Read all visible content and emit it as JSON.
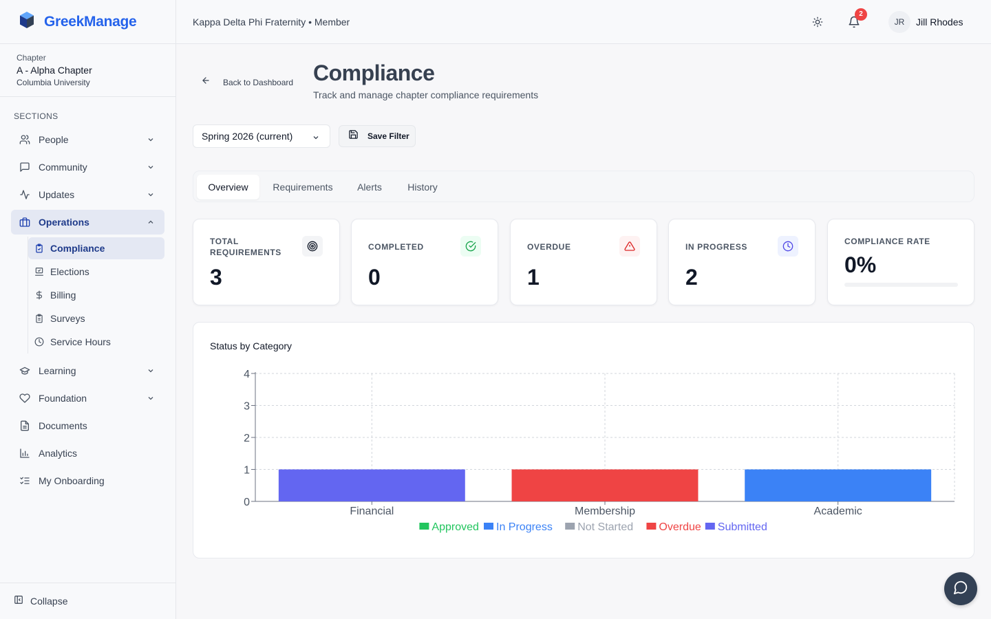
{
  "app": {
    "brand": "GreekManage"
  },
  "chapter": {
    "label": "Chapter",
    "name": "A - Alpha Chapter",
    "university": "Columbia University"
  },
  "sidebar": {
    "sections_label": "SECTIONS",
    "items": [
      {
        "label": "People",
        "icon": "users-icon"
      },
      {
        "label": "Community",
        "icon": "message-square-icon"
      },
      {
        "label": "Updates",
        "icon": "activity-icon"
      },
      {
        "label": "Operations",
        "icon": "briefcase-icon",
        "active": true
      },
      {
        "label": "Learning",
        "icon": "graduation-cap-icon"
      },
      {
        "label": "Foundation",
        "icon": "heart-icon"
      },
      {
        "label": "Documents",
        "icon": "file-icon"
      },
      {
        "label": "Analytics",
        "icon": "bar-chart-icon"
      },
      {
        "label": "My Onboarding",
        "icon": "list-checks-icon"
      }
    ],
    "sub_items": [
      {
        "label": "Compliance",
        "icon": "clipboard-check-icon",
        "active": true
      },
      {
        "label": "Elections",
        "icon": "ballot-box-icon"
      },
      {
        "label": "Billing",
        "icon": "dollar-icon"
      },
      {
        "label": "Surveys",
        "icon": "clipboard-list-icon"
      },
      {
        "label": "Service Hours",
        "icon": "clock-icon"
      }
    ],
    "collapse_label": "Collapse"
  },
  "topbar": {
    "org": "Kappa Delta Phi Fraternity • Member",
    "notifications": "2",
    "avatar_initials": "JR",
    "user_name": "Jill Rhodes"
  },
  "page": {
    "back_label": "Back to Dashboard",
    "title": "Compliance",
    "subtitle": "Track and manage chapter compliance requirements",
    "term_select": "Spring 2026 (current)",
    "save_filter": "Save Filter"
  },
  "tabs": [
    "Overview",
    "Requirements",
    "Alerts",
    "History"
  ],
  "stats": [
    {
      "label": "TOTAL REQUIREMENTS",
      "value": "3",
      "icon": "target-icon",
      "icon_color": "#111827",
      "icon_bg": "#f3f4f6"
    },
    {
      "label": "COMPLETED",
      "value": "0",
      "icon": "check-circle-icon",
      "icon_color": "#16a34a",
      "icon_bg": "#ecfdf3"
    },
    {
      "label": "OVERDUE",
      "value": "1",
      "icon": "alert-triangle-icon",
      "icon_color": "#dc2626",
      "icon_bg": "#fef2f2"
    },
    {
      "label": "IN PROGRESS",
      "value": "2",
      "icon": "clock-icon",
      "icon_color": "#4f46e5",
      "icon_bg": "#eef2ff"
    },
    {
      "label": "COMPLIANCE RATE",
      "value": "0%",
      "progress": 0
    }
  ],
  "chart_data": {
    "type": "bar",
    "title": "Status by Category",
    "categories": [
      "Financial",
      "Membership",
      "Academic"
    ],
    "ylim": [
      0,
      4
    ],
    "yticks": [
      0,
      1,
      2,
      3,
      4
    ],
    "grid": true,
    "legend_position": "bottom",
    "series": [
      {
        "name": "Approved",
        "color": "#22c55e",
        "values": [
          0,
          0,
          0
        ]
      },
      {
        "name": "In Progress",
        "color": "#3b82f6",
        "values": [
          0,
          0,
          1
        ]
      },
      {
        "name": "Not Started",
        "color": "#9ca3af",
        "values": [
          0,
          0,
          0
        ]
      },
      {
        "name": "Overdue",
        "color": "#ef4444",
        "values": [
          0,
          1,
          0
        ]
      },
      {
        "name": "Submitted",
        "color": "#6366f1",
        "values": [
          1,
          0,
          0
        ]
      }
    ]
  }
}
